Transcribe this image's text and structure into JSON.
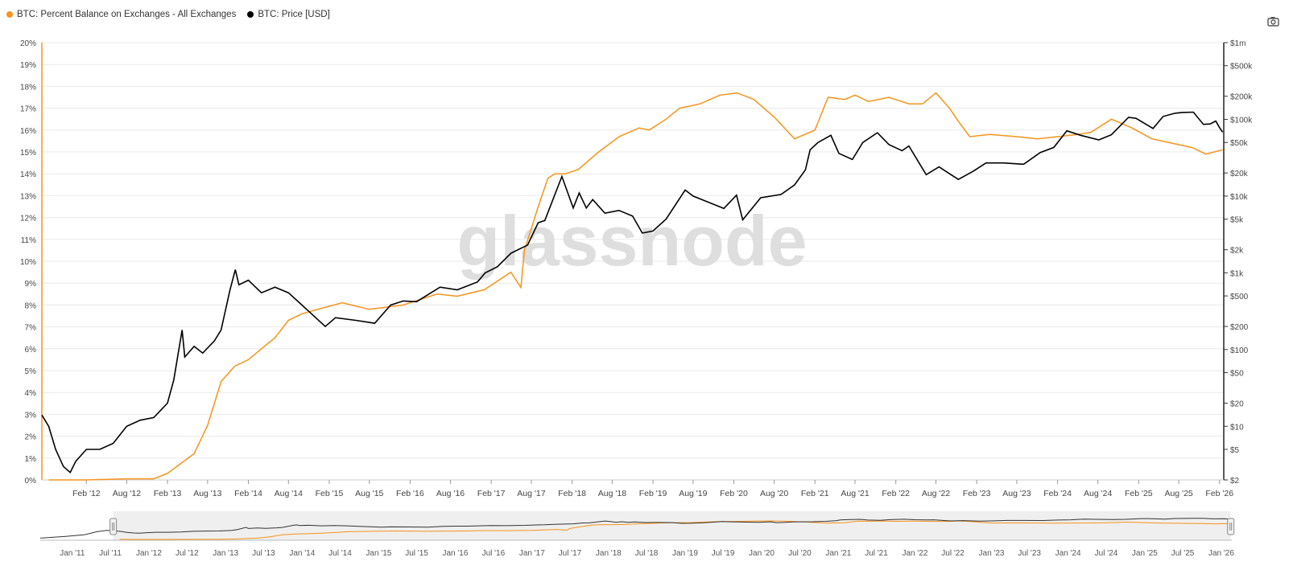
{
  "legend": {
    "balance_label": "BTC: Percent Balance on Exchanges - All Exchanges",
    "price_label": "BTC: Price [USD]"
  },
  "watermark": "glassnode",
  "toolbar": {
    "screenshot_icon": "camera-icon"
  },
  "colors": {
    "balance": "#f7931a",
    "price": "#000000",
    "grid": "#e9e9e9",
    "navigator_bg": "#efefef"
  },
  "chart_data": {
    "type": "line",
    "x_ticks": [
      "Feb '12",
      "Aug '12",
      "Feb '13",
      "Aug '13",
      "Feb '14",
      "Aug '14",
      "Feb '15",
      "Aug '15",
      "Feb '16",
      "Aug '16",
      "Feb '17",
      "Aug '17",
      "Feb '18",
      "Aug '18",
      "Feb '19",
      "Aug '19",
      "Feb '20",
      "Aug '20",
      "Feb '21",
      "Aug '21",
      "Feb '22",
      "Aug '22",
      "Feb '23",
      "Aug '23",
      "Feb '24",
      "Aug '24",
      "Feb '25",
      "Aug '25",
      "Feb '26"
    ],
    "y_left_ticks": [
      "0%",
      "1%",
      "2%",
      "3%",
      "4%",
      "5%",
      "6%",
      "7%",
      "8%",
      "9%",
      "10%",
      "11%",
      "12%",
      "13%",
      "14%",
      "15%",
      "16%",
      "17%",
      "18%",
      "19%",
      "20%"
    ],
    "y_left_range": [
      0,
      20
    ],
    "y_right_ticks": [
      {
        "label": "$2",
        "value": 2
      },
      {
        "label": "$5",
        "value": 5
      },
      {
        "label": "$10",
        "value": 10
      },
      {
        "label": "$20",
        "value": 20
      },
      {
        "label": "$50",
        "value": 50
      },
      {
        "label": "$100",
        "value": 100
      },
      {
        "label": "$200",
        "value": 200
      },
      {
        "label": "$500",
        "value": 500
      },
      {
        "label": "$1k",
        "value": 1000
      },
      {
        "label": "$2k",
        "value": 2000
      },
      {
        "label": "$5k",
        "value": 5000
      },
      {
        "label": "$10k",
        "value": 10000
      },
      {
        "label": "$20k",
        "value": 20000
      },
      {
        "label": "$50k",
        "value": 50000
      },
      {
        "label": "$100k",
        "value": 100000
      },
      {
        "label": "$200k",
        "value": 200000
      },
      {
        "label": "$500k",
        "value": 500000
      },
      {
        "label": "$1m",
        "value": 1000000
      }
    ],
    "y_right_scale": "log",
    "y_right_range": [
      2,
      1000000
    ],
    "navigator_ticks": [
      "Jan '11",
      "Jul '11",
      "Jan '12",
      "Jul '12",
      "Jan '13",
      "Jul '13",
      "Jan '14",
      "Jul '14",
      "Jan '15",
      "Jul '15",
      "Jan '16",
      "Jul '16",
      "Jan '17",
      "Jul '17",
      "Jan '18",
      "Jul '18",
      "Jan '19",
      "Jul '19",
      "Jan '20",
      "Jul '20",
      "Jan '21",
      "Jul '21",
      "Jan '22",
      "Jul '22",
      "Jan '23",
      "Jul '23",
      "Jan '24",
      "Jul '24",
      "Jan '25",
      "Jul '25",
      "Jan '26"
    ],
    "series": [
      {
        "name": "BTC: Percent Balance on Exchanges - All Exchanges",
        "axis": "left",
        "x": [
          "2011-08-15",
          "2012-02-01",
          "2012-08-01",
          "2012-12-01",
          "2013-02-01",
          "2013-06-01",
          "2013-08-01",
          "2013-10-01",
          "2013-12-01",
          "2014-02-01",
          "2014-04-01",
          "2014-06-01",
          "2014-08-01",
          "2014-10-01",
          "2015-01-15",
          "2015-04-01",
          "2015-08-01",
          "2016-01-01",
          "2016-06-01",
          "2016-09-01",
          "2017-01-01",
          "2017-05-01",
          "2017-06-15",
          "2017-07-01",
          "2017-08-01",
          "2017-09-01",
          "2017-10-15",
          "2017-11-15",
          "2018-01-01",
          "2018-03-01",
          "2018-06-01",
          "2018-09-01",
          "2018-12-01",
          "2019-01-15",
          "2019-04-01",
          "2019-06-01",
          "2019-09-01",
          "2019-12-01",
          "2020-02-15",
          "2020-05-01",
          "2020-08-01",
          "2020-11-01",
          "2021-02-01",
          "2021-04-01",
          "2021-06-15",
          "2021-08-01",
          "2021-10-01",
          "2022-01-01",
          "2022-04-01",
          "2022-06-01",
          "2022-08-01",
          "2022-10-01",
          "2022-11-10",
          "2023-01-01",
          "2023-04-01",
          "2023-08-01",
          "2023-11-01",
          "2024-02-01",
          "2024-05-01",
          "2024-07-01",
          "2024-10-01",
          "2025-01-01",
          "2025-04-01",
          "2025-07-01",
          "2025-10-01",
          "2025-12-01",
          "2026-02-15"
        ],
        "values": [
          0.0,
          0.0,
          0.05,
          0.05,
          0.3,
          1.2,
          2.5,
          4.5,
          5.2,
          5.5,
          6.0,
          6.5,
          7.3,
          7.6,
          7.9,
          8.1,
          7.8,
          8.0,
          8.5,
          8.4,
          8.7,
          9.5,
          8.8,
          10.5,
          11.5,
          12.5,
          13.8,
          14.0,
          14.0,
          14.2,
          15.0,
          15.7,
          16.1,
          16.0,
          16.5,
          17.0,
          17.2,
          17.6,
          17.7,
          17.4,
          16.6,
          15.6,
          16.0,
          17.5,
          17.4,
          17.6,
          17.3,
          17.5,
          17.2,
          17.2,
          17.7,
          17.0,
          16.4,
          15.7,
          15.8,
          15.7,
          15.6,
          15.7,
          15.8,
          15.9,
          16.5,
          16.1,
          15.6,
          15.4,
          15.2,
          14.9,
          15.1
        ]
      },
      {
        "name": "BTC: Price [USD]",
        "axis": "right",
        "x": [
          "2011-07-15",
          "2011-08-15",
          "2011-09-15",
          "2011-10-20",
          "2011-11-20",
          "2011-12-15",
          "2012-02-01",
          "2012-04-01",
          "2012-06-01",
          "2012-08-01",
          "2012-10-01",
          "2012-12-01",
          "2013-02-01",
          "2013-03-01",
          "2013-04-08",
          "2013-04-20",
          "2013-06-01",
          "2013-07-10",
          "2013-09-01",
          "2013-10-01",
          "2013-11-10",
          "2013-12-04",
          "2013-12-20",
          "2014-02-01",
          "2014-04-01",
          "2014-06-01",
          "2014-08-01",
          "2014-10-01",
          "2015-01-14",
          "2015-03-01",
          "2015-06-01",
          "2015-08-25",
          "2015-11-05",
          "2016-01-01",
          "2016-03-01",
          "2016-06-15",
          "2016-09-01",
          "2016-12-01",
          "2017-01-05",
          "2017-03-01",
          "2017-05-01",
          "2017-07-15",
          "2017-09-01",
          "2017-10-01",
          "2017-12-17",
          "2018-02-06",
          "2018-03-05",
          "2018-04-06",
          "2018-05-05",
          "2018-06-29",
          "2018-09-01",
          "2018-11-01",
          "2018-12-15",
          "2019-02-01",
          "2019-04-01",
          "2019-06-26",
          "2019-08-01",
          "2019-10-01",
          "2019-12-18",
          "2020-02-13",
          "2020-03-12",
          "2020-06-01",
          "2020-09-01",
          "2020-11-01",
          "2020-12-20",
          "2021-01-10",
          "2021-02-15",
          "2021-04-14",
          "2021-05-20",
          "2021-07-20",
          "2021-09-05",
          "2021-11-10",
          "2022-01-01",
          "2022-03-01",
          "2022-04-01",
          "2022-06-18",
          "2022-08-15",
          "2022-11-10",
          "2023-01-15",
          "2023-03-15",
          "2023-06-01",
          "2023-09-01",
          "2023-11-15",
          "2024-01-15",
          "2024-03-14",
          "2024-05-15",
          "2024-08-05",
          "2024-10-01",
          "2024-12-17",
          "2025-01-20",
          "2025-04-07",
          "2025-05-22",
          "2025-07-14",
          "2025-08-14",
          "2025-10-06",
          "2025-11-20",
          "2025-12-20",
          "2026-01-15",
          "2026-02-01",
          "2026-02-15"
        ],
        "values": [
          14,
          10,
          5,
          3,
          2.5,
          3.5,
          5,
          5,
          6,
          10,
          12,
          13,
          20,
          40,
          180,
          80,
          110,
          90,
          130,
          180,
          600,
          1100,
          700,
          800,
          550,
          650,
          550,
          380,
          200,
          260,
          240,
          220,
          380,
          430,
          420,
          650,
          600,
          760,
          1000,
          1200,
          1800,
          2300,
          4500,
          4800,
          18000,
          7000,
          11000,
          7000,
          9000,
          6000,
          6500,
          5500,
          3300,
          3500,
          5000,
          12000,
          10000,
          8500,
          6900,
          10300,
          4900,
          9500,
          10500,
          14000,
          22000,
          40000,
          50000,
          62000,
          36000,
          30000,
          50000,
          67000,
          47000,
          39000,
          45000,
          19000,
          24000,
          16500,
          21000,
          27000,
          27000,
          26000,
          37000,
          43000,
          71000,
          62000,
          54000,
          63000,
          106000,
          103000,
          76000,
          109000,
          120000,
          123000,
          124000,
          86000,
          87000,
          95000,
          78000,
          68000
        ]
      }
    ]
  }
}
